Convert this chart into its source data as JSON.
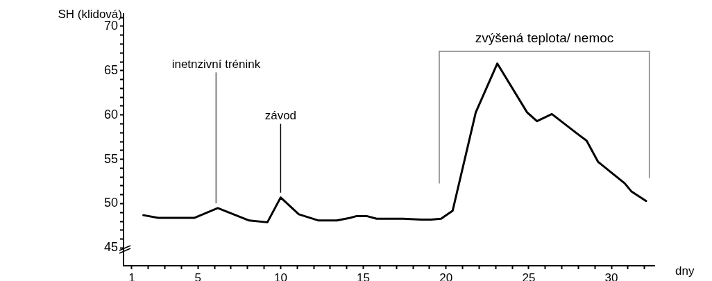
{
  "chart_data": {
    "type": "line",
    "xlabel": "dny",
    "ylabel": "SH (klidová)",
    "series": [
      {
        "color": "#000000",
        "x": [
          1.7,
          2.6,
          4.8,
          6.2,
          8.1,
          9.2,
          10.0,
          11.1,
          12.3,
          13.4,
          14.2,
          14.6,
          15.2,
          15.8,
          17.4,
          18.5,
          19.1,
          19.7,
          20.4,
          21.8,
          23.1,
          24.9,
          25.5,
          26.4,
          28.0,
          28.5,
          29.2,
          30.8,
          31.2,
          32.1
        ],
        "values": [
          48.7,
          48.4,
          48.4,
          49.5,
          48.1,
          47.9,
          50.7,
          48.8,
          48.1,
          48.1,
          48.4,
          48.6,
          48.6,
          48.3,
          48.3,
          48.2,
          48.2,
          48.3,
          49.2,
          60.3,
          65.8,
          60.3,
          59.3,
          60.1,
          57.8,
          57.1,
          54.7,
          52.3,
          51.4,
          50.3
        ]
      }
    ],
    "xlim": [
      0.5,
      32.6
    ],
    "xticks": [
      1,
      {
        "value": 2,
        "label": null
      },
      {
        "value": 3,
        "label": null
      },
      {
        "value": 4,
        "label": null
      },
      5,
      {
        "value": 6,
        "label": null
      },
      {
        "value": 7,
        "label": null
      },
      {
        "value": 8,
        "label": null
      },
      {
        "value": 9,
        "label": null
      },
      10,
      {
        "value": 11,
        "label": null
      },
      {
        "value": 12,
        "label": null
      },
      {
        "value": 13,
        "label": null
      },
      {
        "value": 14,
        "label": null
      },
      15,
      {
        "value": 16,
        "label": null
      },
      {
        "value": 17,
        "label": null
      },
      {
        "value": 18,
        "label": null
      },
      {
        "value": 19,
        "label": null
      },
      20,
      {
        "value": 21,
        "label": null
      },
      {
        "value": 22,
        "label": null
      },
      {
        "value": 23,
        "label": null
      },
      {
        "value": 24,
        "label": null
      },
      25,
      {
        "value": 26,
        "label": null
      },
      {
        "value": 27,
        "label": null
      },
      {
        "value": 28,
        "label": null
      },
      {
        "value": 29,
        "label": null
      },
      30,
      {
        "value": 31,
        "label": null
      },
      {
        "value": 32,
        "label": null
      }
    ],
    "ylim": [
      43,
      71.4
    ],
    "yticks": [
      45,
      {
        "value": 46,
        "label": null
      },
      {
        "value": 47,
        "label": null
      },
      {
        "value": 48,
        "label": null
      },
      {
        "value": 49,
        "label": null
      },
      50,
      {
        "value": 51,
        "label": null
      },
      {
        "value": 52,
        "label": null
      },
      {
        "value": 53,
        "label": null
      },
      {
        "value": 54,
        "label": null
      },
      55,
      {
        "value": 56,
        "label": null
      },
      {
        "value": 57,
        "label": null
      },
      {
        "value": 58,
        "label": null
      },
      {
        "value": 59,
        "label": null
      },
      60,
      {
        "value": 61,
        "label": null
      },
      {
        "value": 62,
        "label": null
      },
      {
        "value": 63,
        "label": null
      },
      {
        "value": 64,
        "label": null
      },
      65,
      {
        "value": 66,
        "label": null
      },
      {
        "value": 67,
        "label": null
      },
      {
        "value": 68,
        "label": null
      },
      {
        "value": 69,
        "label": null
      },
      70,
      {
        "value": 71,
        "label": null
      }
    ],
    "annotations": [
      {
        "text": "inetnzivní trénink",
        "x": 6.1,
        "y": 49.8
      },
      {
        "text": "závod",
        "x": 10.0,
        "y": 51.0
      },
      "zvýšená teplota/ nemoc"
    ],
    "grid": false,
    "legend": false,
    "marker": "none",
    "line_style": "solid"
  }
}
